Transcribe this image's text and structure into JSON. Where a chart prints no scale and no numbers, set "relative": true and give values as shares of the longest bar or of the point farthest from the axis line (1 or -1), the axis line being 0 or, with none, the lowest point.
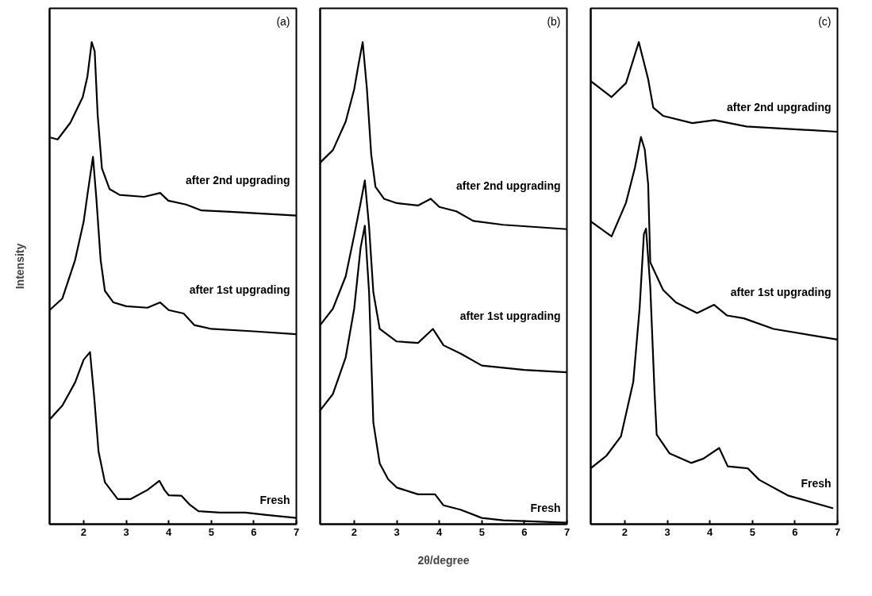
{
  "chart_data": [
    {
      "type": "line",
      "title": "(a)",
      "ylabel": "Intensity",
      "relative": true,
      "xlim": [
        1.2,
        7
      ],
      "xticks": [
        2,
        3,
        4,
        5,
        6,
        7
      ],
      "series": [
        {
          "name": "after 2nd upgrading",
          "color": "#000000",
          "x": [
            1.22,
            1.39,
            1.69,
            1.98,
            2.09,
            2.19,
            2.26,
            2.33,
            2.43,
            2.61,
            2.85,
            3.42,
            3.8,
            3.99,
            4.41,
            4.76,
            5.45,
            7.0
          ],
          "values": [
            0.802,
            0.798,
            0.833,
            0.886,
            0.929,
            1.0,
            0.981,
            0.849,
            0.738,
            0.695,
            0.683,
            0.679,
            0.687,
            0.671,
            0.663,
            0.651,
            0.648,
            0.64
          ]
        },
        {
          "name": "after 1st upgrading",
          "color": "#000000",
          "x": [
            1.2,
            1.5,
            1.8,
            2.0,
            2.1,
            2.22,
            2.3,
            2.4,
            2.5,
            2.7,
            3.0,
            3.5,
            3.8,
            4.0,
            4.35,
            4.6,
            5.0,
            6.0,
            7.0
          ],
          "values": [
            0.444,
            0.468,
            0.548,
            0.627,
            0.69,
            0.762,
            0.675,
            0.548,
            0.484,
            0.46,
            0.452,
            0.449,
            0.46,
            0.444,
            0.437,
            0.413,
            0.405,
            0.4,
            0.394
          ]
        },
        {
          "name": "Fresh",
          "color": "#000000",
          "x": [
            1.2,
            1.5,
            1.8,
            2.0,
            2.15,
            2.25,
            2.35,
            2.5,
            2.8,
            3.1,
            3.5,
            3.78,
            3.9,
            4.0,
            4.3,
            4.5,
            4.7,
            5.2,
            5.8,
            6.3,
            7.0
          ],
          "values": [
            0.217,
            0.246,
            0.294,
            0.341,
            0.357,
            0.262,
            0.151,
            0.087,
            0.052,
            0.052,
            0.071,
            0.09,
            0.071,
            0.06,
            0.059,
            0.04,
            0.027,
            0.024,
            0.024,
            0.019,
            0.013
          ]
        }
      ]
    },
    {
      "type": "line",
      "title": "(b)",
      "xlabel": "2θ/degree",
      "relative": true,
      "xlim": [
        1.2,
        7
      ],
      "xticks": [
        2,
        3,
        4,
        5,
        6,
        7
      ],
      "series": [
        {
          "name": "after 2nd upgrading",
          "color": "#000000",
          "x": [
            1.2,
            1.5,
            1.8,
            2.0,
            2.1,
            2.2,
            2.3,
            2.4,
            2.5,
            2.7,
            3.0,
            3.5,
            3.8,
            4.0,
            4.4,
            4.8,
            5.5,
            7.0
          ],
          "values": [
            0.75,
            0.776,
            0.835,
            0.902,
            0.953,
            1.0,
            0.902,
            0.767,
            0.7,
            0.675,
            0.666,
            0.661,
            0.675,
            0.658,
            0.649,
            0.629,
            0.621,
            0.612
          ]
        },
        {
          "name": "after 1st upgrading",
          "color": "#000000",
          "x": [
            1.2,
            1.5,
            1.8,
            2.0,
            2.15,
            2.25,
            2.35,
            2.45,
            2.6,
            3.0,
            3.5,
            3.85,
            4.1,
            4.5,
            5.0,
            6.0,
            7.0
          ],
          "values": [
            0.413,
            0.447,
            0.514,
            0.599,
            0.666,
            0.713,
            0.617,
            0.481,
            0.405,
            0.379,
            0.376,
            0.405,
            0.371,
            0.354,
            0.329,
            0.32,
            0.315
          ]
        },
        {
          "name": "Fresh",
          "color": "#000000",
          "x": [
            1.2,
            1.5,
            1.8,
            2.0,
            2.15,
            2.25,
            2.35,
            2.45,
            2.6,
            2.8,
            3.0,
            3.5,
            3.9,
            4.1,
            4.5,
            5.0,
            5.5,
            7.0
          ],
          "values": [
            0.236,
            0.27,
            0.346,
            0.447,
            0.573,
            0.619,
            0.481,
            0.211,
            0.126,
            0.093,
            0.076,
            0.062,
            0.062,
            0.039,
            0.03,
            0.013,
            0.008,
            0.003
          ]
        }
      ]
    },
    {
      "type": "line",
      "title": "(c)",
      "relative": true,
      "xlim": [
        1.2,
        7
      ],
      "xticks": [
        2,
        3,
        4,
        5,
        6,
        7
      ],
      "series": [
        {
          "name": "after 2nd upgrading",
          "color": "#000000",
          "x": [
            1.2,
            1.69,
            2.03,
            2.33,
            2.55,
            2.67,
            2.9,
            3.59,
            4.11,
            4.86,
            7.0
          ],
          "values": [
            0.919,
            0.886,
            0.915,
            1.0,
            0.923,
            0.864,
            0.847,
            0.832,
            0.838,
            0.825,
            0.814
          ]
        },
        {
          "name": "after 1st upgrading",
          "color": "#000000",
          "x": [
            1.2,
            1.69,
            2.03,
            2.24,
            2.38,
            2.47,
            2.55,
            2.6,
            2.9,
            3.2,
            3.7,
            4.1,
            4.4,
            4.8,
            5.5,
            7.0
          ],
          "values": [
            0.628,
            0.597,
            0.667,
            0.74,
            0.803,
            0.777,
            0.705,
            0.543,
            0.486,
            0.46,
            0.438,
            0.455,
            0.433,
            0.427,
            0.405,
            0.383
          ]
        },
        {
          "name": "Fresh",
          "color": "#000000",
          "x": [
            1.2,
            1.57,
            1.91,
            2.2,
            2.35,
            2.45,
            2.5,
            2.6,
            2.7,
            2.75,
            3.05,
            3.56,
            3.85,
            4.22,
            4.42,
            4.89,
            5.16,
            5.85,
            6.9
          ],
          "values": [
            0.116,
            0.142,
            0.182,
            0.295,
            0.449,
            0.602,
            0.613,
            0.492,
            0.274,
            0.186,
            0.147,
            0.127,
            0.136,
            0.158,
            0.12,
            0.116,
            0.092,
            0.059,
            0.033
          ]
        }
      ]
    }
  ]
}
